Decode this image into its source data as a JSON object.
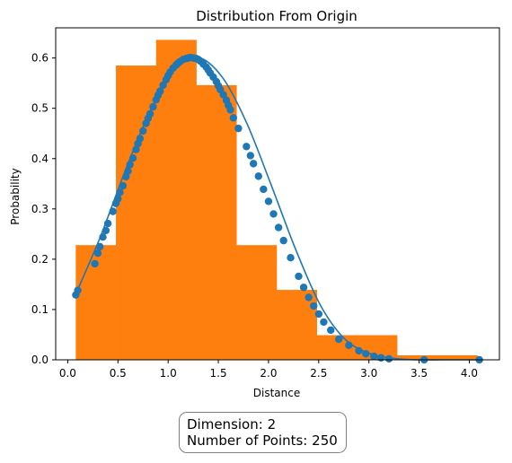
{
  "info_box": {
    "dimension_label": "Dimension:",
    "dimension_value": "2",
    "points_label": "Number of Points:",
    "points_value": "250"
  },
  "chart_data": {
    "type": "bar+line+scatter",
    "title": "Distribution From Origin",
    "xlabel": "Distance",
    "ylabel": "Probability",
    "xlim": [
      -0.12,
      4.3
    ],
    "ylim": [
      0,
      0.66
    ],
    "xticks": [
      "0.0",
      "0.5",
      "1.0",
      "1.5",
      "2.0",
      "2.5",
      "3.0",
      "3.5",
      "4.0"
    ],
    "xtick_values": [
      0,
      0.5,
      1,
      1.5,
      2,
      2.5,
      3,
      3.5,
      4
    ],
    "yticks": [
      "0.0",
      "0.1",
      "0.2",
      "0.3",
      "0.4",
      "0.5",
      "0.6"
    ],
    "ytick_values": [
      0,
      0.1,
      0.2,
      0.3,
      0.4,
      0.5,
      0.6
    ],
    "grid": false,
    "histogram": {
      "color": "#ff7f0e",
      "bin_edges": [
        0.08,
        0.48,
        0.88,
        1.28,
        1.68,
        2.08,
        2.48,
        2.88,
        3.28,
        3.68,
        4.08
      ],
      "values": [
        0.228,
        0.585,
        0.636,
        0.546,
        0.228,
        0.139,
        0.049,
        0.049,
        0.009,
        0.009
      ]
    },
    "curve": {
      "color": "#1f77b4",
      "x": [
        0.0764,
        0.3201,
        0.5637,
        0.8074,
        1.051,
        1.2947,
        1.5384,
        1.782,
        2.0257,
        2.2694,
        2.513,
        2.7567,
        3.0003,
        3.244,
        3.4877,
        3.7313,
        3.975,
        4.1
      ],
      "y": [
        0.129,
        0.242,
        0.371,
        0.489,
        0.575,
        0.601,
        0.562,
        0.471,
        0.348,
        0.22,
        0.11,
        0.042,
        0.013,
        0.003,
        0.0,
        0.0,
        0.0,
        0.0
      ]
    },
    "points": {
      "color": "#1f77b4",
      "x": [
        0.08,
        0.1,
        0.27,
        0.3,
        0.32,
        0.35,
        0.38,
        0.4,
        0.45,
        0.48,
        0.5,
        0.52,
        0.55,
        0.58,
        0.6,
        0.62,
        0.65,
        0.68,
        0.7,
        0.72,
        0.75,
        0.78,
        0.8,
        0.82,
        0.85,
        0.88,
        0.9,
        0.92,
        0.95,
        0.98,
        1.0,
        1.02,
        1.05,
        1.08,
        1.1,
        1.12,
        1.15,
        1.18,
        1.2,
        1.22,
        1.25,
        1.28,
        1.3,
        1.32,
        1.35,
        1.38,
        1.4,
        1.42,
        1.45,
        1.48,
        1.5,
        1.52,
        1.55,
        1.58,
        1.6,
        1.62,
        1.65,
        1.7,
        1.78,
        1.82,
        1.85,
        1.9,
        1.95,
        2.0,
        2.05,
        2.1,
        2.15,
        2.22,
        2.3,
        2.35,
        2.4,
        2.45,
        2.5,
        2.55,
        2.62,
        2.7,
        2.8,
        2.9,
        2.97,
        3.05,
        3.12,
        3.2,
        3.55,
        4.1
      ],
      "y": [
        0.129,
        0.138,
        0.191,
        0.212,
        0.225,
        0.244,
        0.257,
        0.271,
        0.295,
        0.311,
        0.32,
        0.333,
        0.346,
        0.364,
        0.375,
        0.388,
        0.401,
        0.418,
        0.43,
        0.44,
        0.455,
        0.47,
        0.48,
        0.489,
        0.503,
        0.517,
        0.526,
        0.534,
        0.546,
        0.557,
        0.565,
        0.572,
        0.58,
        0.586,
        0.59,
        0.593,
        0.597,
        0.599,
        0.6,
        0.601,
        0.6,
        0.599,
        0.597,
        0.594,
        0.588,
        0.582,
        0.576,
        0.57,
        0.562,
        0.553,
        0.545,
        0.537,
        0.527,
        0.516,
        0.506,
        0.497,
        0.481,
        0.46,
        0.424,
        0.406,
        0.39,
        0.365,
        0.339,
        0.315,
        0.29,
        0.263,
        0.237,
        0.203,
        0.166,
        0.144,
        0.124,
        0.107,
        0.091,
        0.075,
        0.059,
        0.041,
        0.029,
        0.018,
        0.012,
        0.007,
        0.004,
        0.002,
        0.0,
        0.0
      ]
    }
  }
}
